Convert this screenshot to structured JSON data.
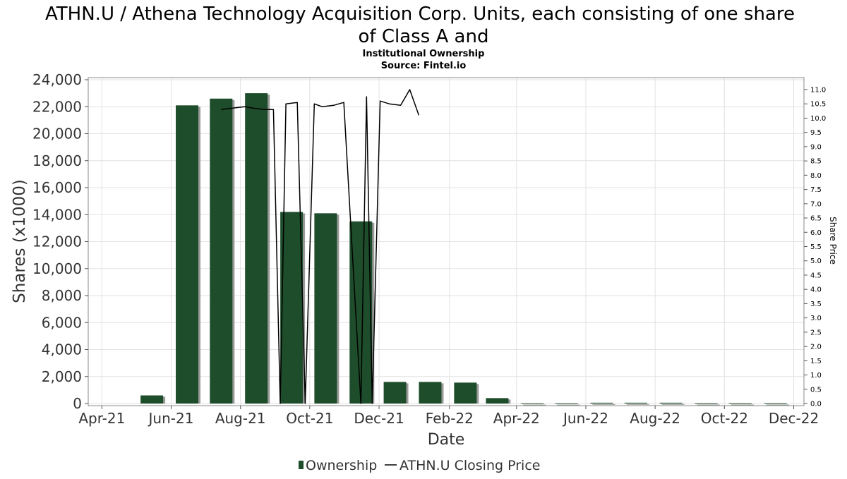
{
  "chart_data": {
    "type": "bar",
    "title_line1": "ATHN.U / Athena Technology Acquisition Corp. Units, each consisting of one share",
    "title_line2": "of Class A and",
    "subtitle": "Institutional Ownership",
    "source": "Source: Fintel.io",
    "xlabel": "Date",
    "ylabel": "Shares (x1000)",
    "y2label": "Share Price",
    "ylim": [
      0,
      24000
    ],
    "y2lim": [
      0,
      11.5
    ],
    "y_ticks": [
      0,
      2000,
      4000,
      6000,
      8000,
      10000,
      12000,
      14000,
      16000,
      18000,
      20000,
      22000,
      24000
    ],
    "y_tick_labels": [
      "0",
      "2,000",
      "4,000",
      "6,000",
      "8,000",
      "10,000",
      "12,000",
      "14,000",
      "16,000",
      "18,000",
      "20,000",
      "22,000",
      "24,000"
    ],
    "y2_ticks": [
      0,
      0.5,
      1,
      1.5,
      2,
      2.5,
      3,
      3.5,
      4,
      4.5,
      5,
      5.5,
      6,
      6.5,
      7,
      7.5,
      8,
      8.5,
      9,
      9.5,
      10,
      10.5,
      11
    ],
    "y2_tick_labels": [
      "0.0",
      "0.5",
      "1.0",
      "1.5",
      "2.0",
      "2.5",
      "3.0",
      "3.5",
      "4.0",
      "4.5",
      "5.0",
      "5.5",
      "6.0",
      "6.5",
      "7.0",
      "7.5",
      "8.0",
      "8.5",
      "9.0",
      "9.5",
      "10.0",
      "10.5",
      "11.0"
    ],
    "x_tick_labels": [
      "Apr-21",
      "Jun-21",
      "Aug-21",
      "Oct-21",
      "Dec-21",
      "Feb-22",
      "Apr-22",
      "Jun-22",
      "Aug-22",
      "Oct-22",
      "Dec-22"
    ],
    "grid": true,
    "legend_position": "bottom",
    "bar_color": "#1e4d2b",
    "line_color": "#000000",
    "series": [
      {
        "name": "Ownership",
        "kind": "bar",
        "x": [
          "2021-04",
          "2021-05",
          "2021-06",
          "2021-07",
          "2021-08",
          "2021-09",
          "2021-10",
          "2021-11",
          "2021-12",
          "2022-01",
          "2022-02",
          "2022-03",
          "2022-04",
          "2022-05",
          "2022-06",
          "2022-07",
          "2022-08",
          "2022-09",
          "2022-10",
          "2022-11"
        ],
        "values": [
          0,
          600,
          22100,
          22600,
          23000,
          14200,
          14100,
          13500,
          1600,
          1600,
          1550,
          400,
          20,
          20,
          60,
          60,
          60,
          30,
          30,
          30
        ]
      },
      {
        "name": "ATHN.U Closing Price",
        "kind": "line",
        "segments": [
          [
            [
              "2021-07-15",
              10.3
            ],
            [
              "2021-07-25",
              10.35
            ],
            [
              "2021-08-05",
              10.4
            ],
            [
              "2021-08-12",
              10.35
            ],
            [
              "2021-08-22",
              10.3
            ],
            [
              "2021-08-30",
              10.3
            ],
            [
              "2021-09-05",
              0
            ],
            [
              "2021-09-10",
              10.5
            ],
            [
              "2021-09-20",
              10.55
            ],
            [
              "2021-09-27",
              0
            ],
            [
              "2021-10-05",
              10.5
            ],
            [
              "2021-10-12",
              10.4
            ],
            [
              "2021-10-22",
              10.45
            ],
            [
              "2021-10-31",
              10.55
            ],
            [
              "2021-11-15",
              0
            ],
            [
              "2021-11-20",
              10.75
            ],
            [
              "2021-11-25",
              0
            ],
            [
              "2021-12-02",
              10.6
            ],
            [
              "2021-12-10",
              10.5
            ],
            [
              "2021-12-20",
              10.45
            ],
            [
              "2021-12-28",
              11.0
            ],
            [
              "2022-01-05",
              10.1
            ]
          ]
        ]
      }
    ]
  }
}
